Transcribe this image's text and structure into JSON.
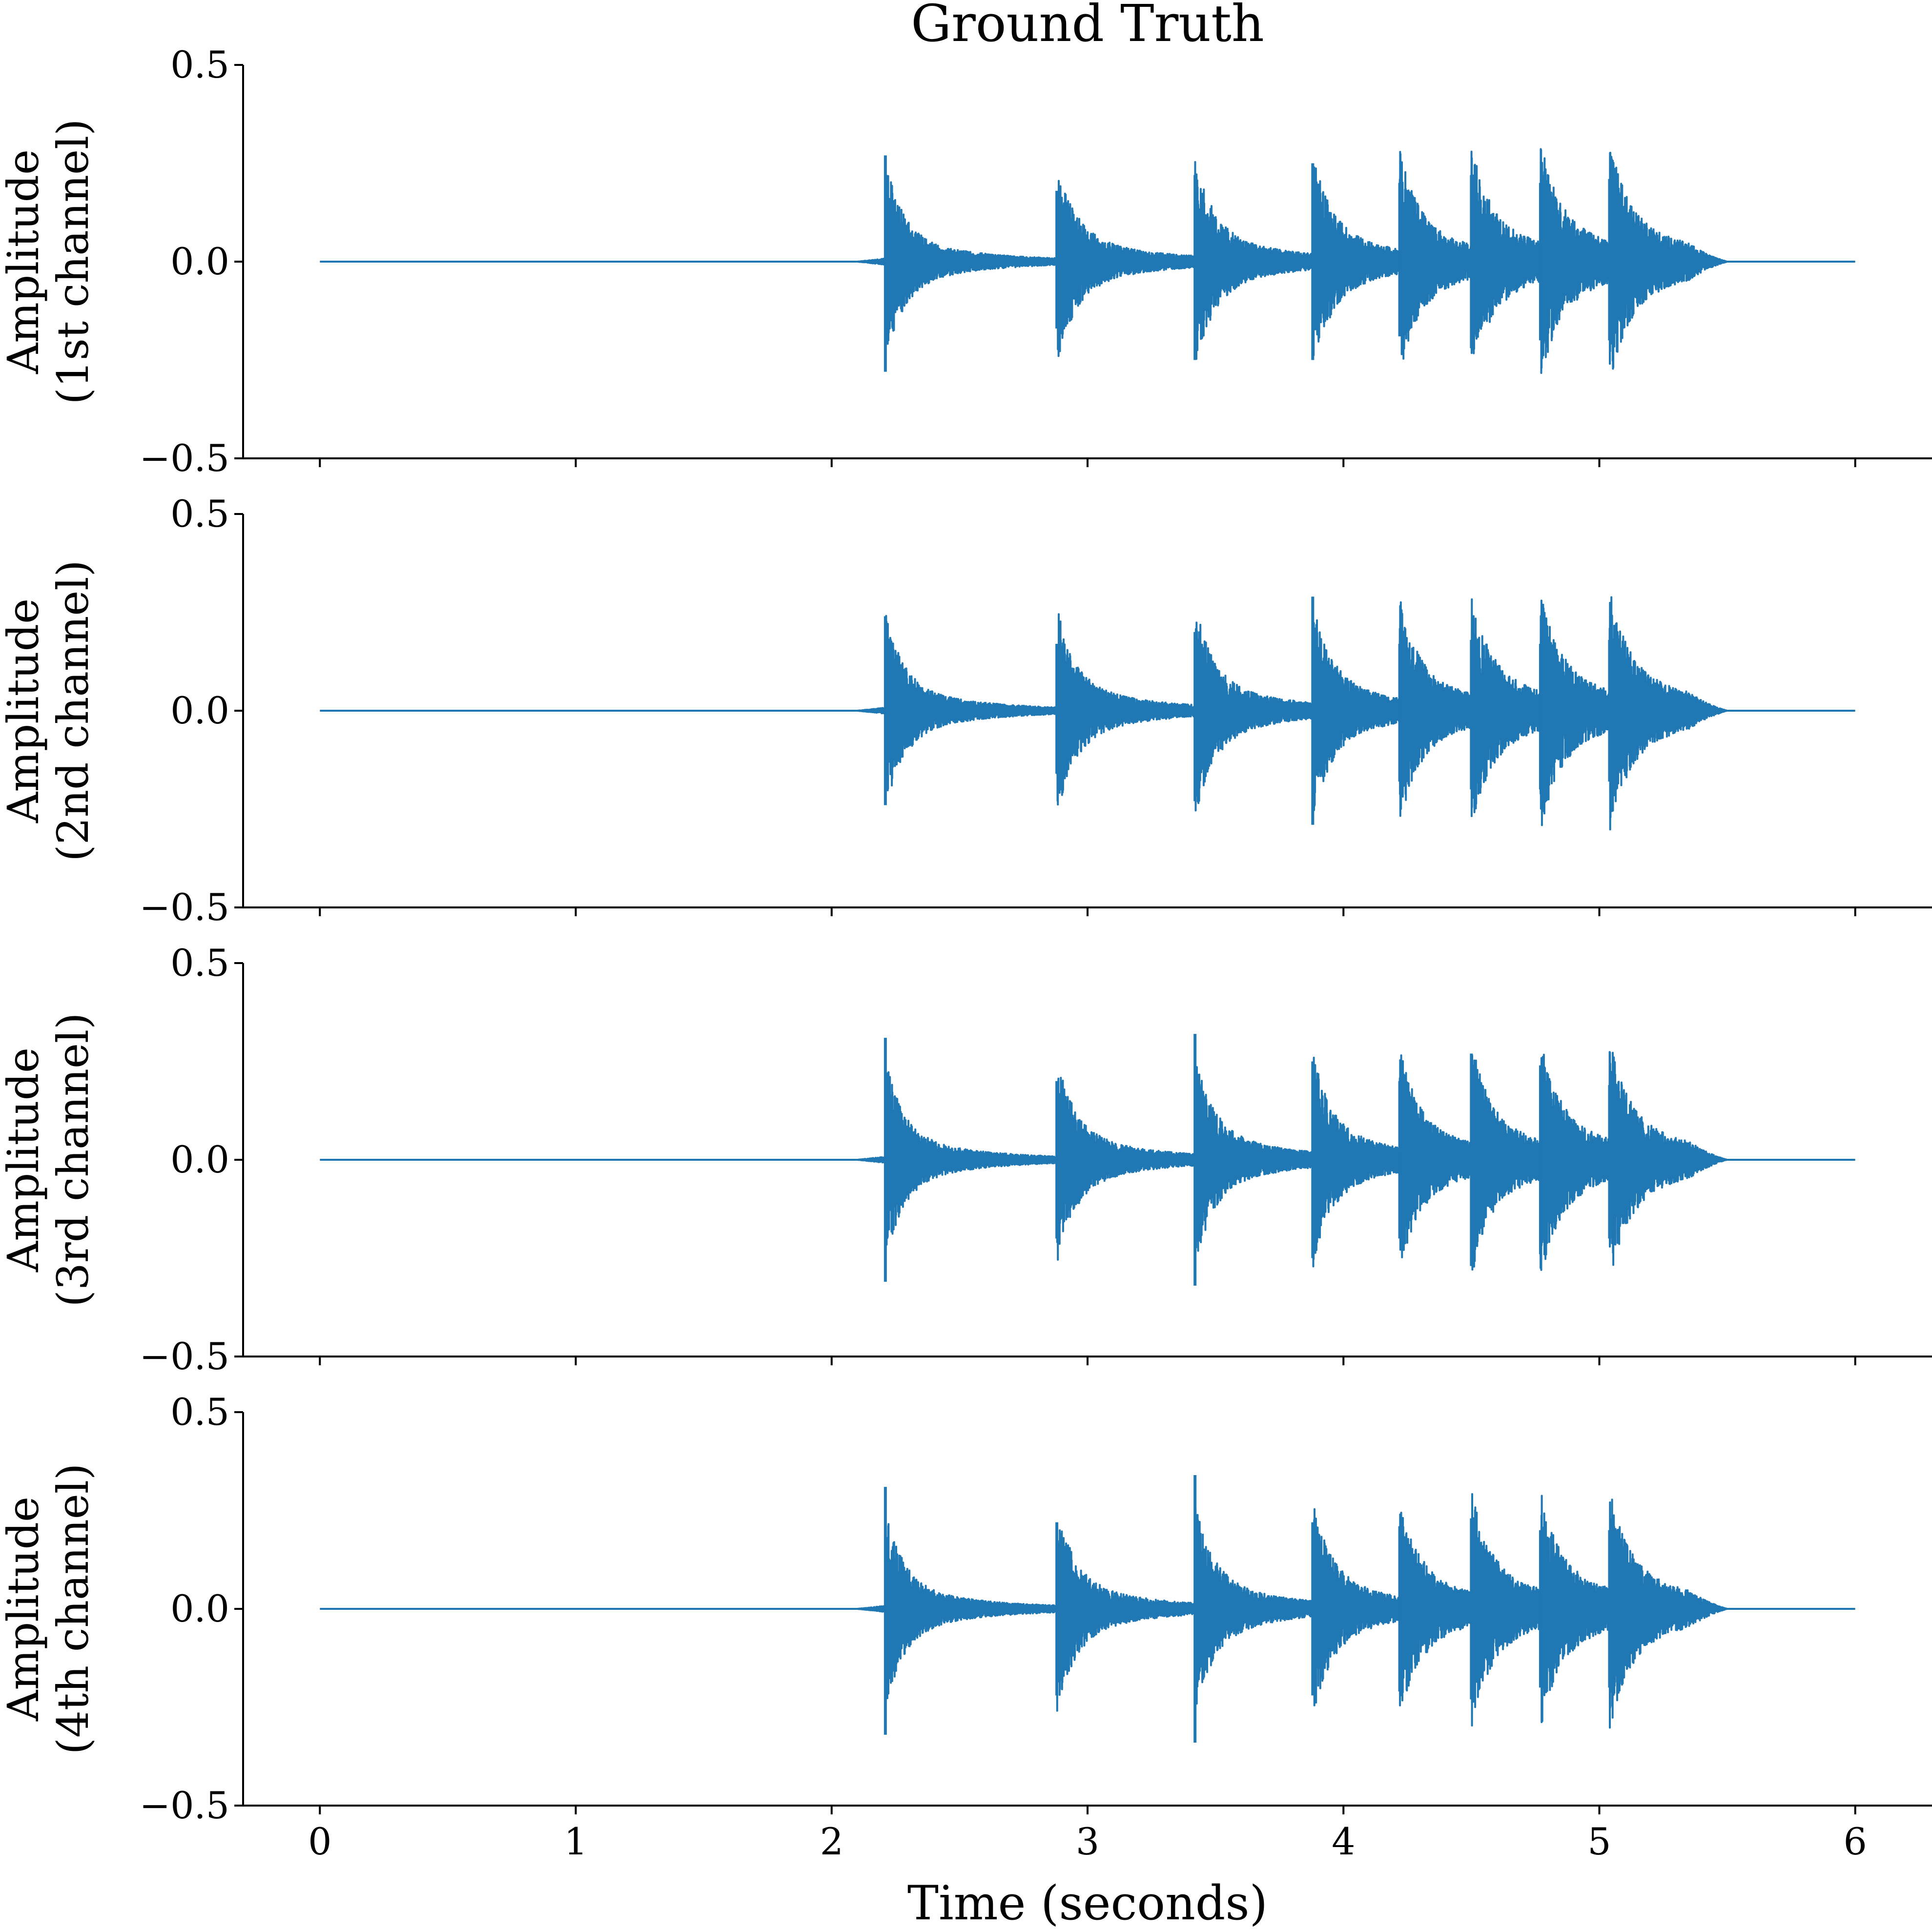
{
  "title": "Ground Truth",
  "chart_data": {
    "type": "line",
    "title": "Ground Truth",
    "xlabel": "Time (seconds)",
    "xlim": [
      -0.3,
      6.3
    ],
    "xticks": [
      "0",
      "1",
      "2",
      "3",
      "4",
      "5",
      "6"
    ],
    "ylim": [
      -0.5,
      0.5
    ],
    "yticks": [
      "0.5",
      "0.0",
      "−0.5"
    ],
    "color": "#1f77b4",
    "grid": false,
    "signal_start": 2.1,
    "signal_end": 5.5,
    "series": [
      {
        "ylabel": [
          "Amplitude",
          "(1st channel)"
        ],
        "onsets": [
          {
            "t": 2.21,
            "pos": 0.27,
            "neg": -0.28
          },
          {
            "t": 2.88,
            "pos": 0.18,
            "neg": -0.17
          },
          {
            "t": 3.42,
            "pos": 0.22,
            "neg": -0.25
          },
          {
            "t": 3.88,
            "pos": 0.25,
            "neg": -0.25
          },
          {
            "t": 4.22,
            "pos": 0.2,
            "neg": -0.19
          },
          {
            "t": 4.5,
            "pos": 0.22,
            "neg": -0.22
          },
          {
            "t": 4.77,
            "pos": 0.2,
            "neg": -0.2
          },
          {
            "t": 5.04,
            "pos": 0.21,
            "neg": -0.2
          }
        ]
      },
      {
        "ylabel": [
          "Amplitude",
          "(2nd channel)"
        ],
        "onsets": [
          {
            "t": 2.21,
            "pos": 0.24,
            "neg": -0.24
          },
          {
            "t": 2.88,
            "pos": 0.17,
            "neg": -0.16
          },
          {
            "t": 3.42,
            "pos": 0.2,
            "neg": -0.23
          },
          {
            "t": 3.88,
            "pos": 0.29,
            "neg": -0.29
          },
          {
            "t": 4.22,
            "pos": 0.17,
            "neg": -0.18
          },
          {
            "t": 4.5,
            "pos": 0.18,
            "neg": -0.2
          },
          {
            "t": 4.77,
            "pos": 0.17,
            "neg": -0.2
          },
          {
            "t": 5.04,
            "pos": 0.18,
            "neg": -0.18
          }
        ]
      },
      {
        "ylabel": [
          "Amplitude",
          "(3rd channel)"
        ],
        "onsets": [
          {
            "t": 2.21,
            "pos": 0.31,
            "neg": -0.31
          },
          {
            "t": 2.88,
            "pos": 0.2,
            "neg": -0.2
          },
          {
            "t": 3.42,
            "pos": 0.32,
            "neg": -0.32
          },
          {
            "t": 3.88,
            "pos": 0.25,
            "neg": -0.25
          },
          {
            "t": 4.22,
            "pos": 0.2,
            "neg": -0.2
          },
          {
            "t": 4.5,
            "pos": 0.27,
            "neg": -0.27
          },
          {
            "t": 4.77,
            "pos": 0.24,
            "neg": -0.24
          },
          {
            "t": 5.04,
            "pos": 0.19,
            "neg": -0.2
          }
        ]
      },
      {
        "ylabel": [
          "Amplitude",
          "(4th channel)"
        ],
        "onsets": [
          {
            "t": 2.21,
            "pos": 0.31,
            "neg": -0.32
          },
          {
            "t": 2.88,
            "pos": 0.22,
            "neg": -0.22
          },
          {
            "t": 3.42,
            "pos": 0.34,
            "neg": -0.34
          },
          {
            "t": 3.88,
            "pos": 0.22,
            "neg": -0.22
          },
          {
            "t": 4.22,
            "pos": 0.21,
            "neg": -0.21
          },
          {
            "t": 4.5,
            "pos": 0.23,
            "neg": -0.23
          },
          {
            "t": 4.77,
            "pos": 0.2,
            "neg": -0.2
          },
          {
            "t": 5.04,
            "pos": 0.2,
            "neg": -0.2
          }
        ]
      }
    ]
  }
}
